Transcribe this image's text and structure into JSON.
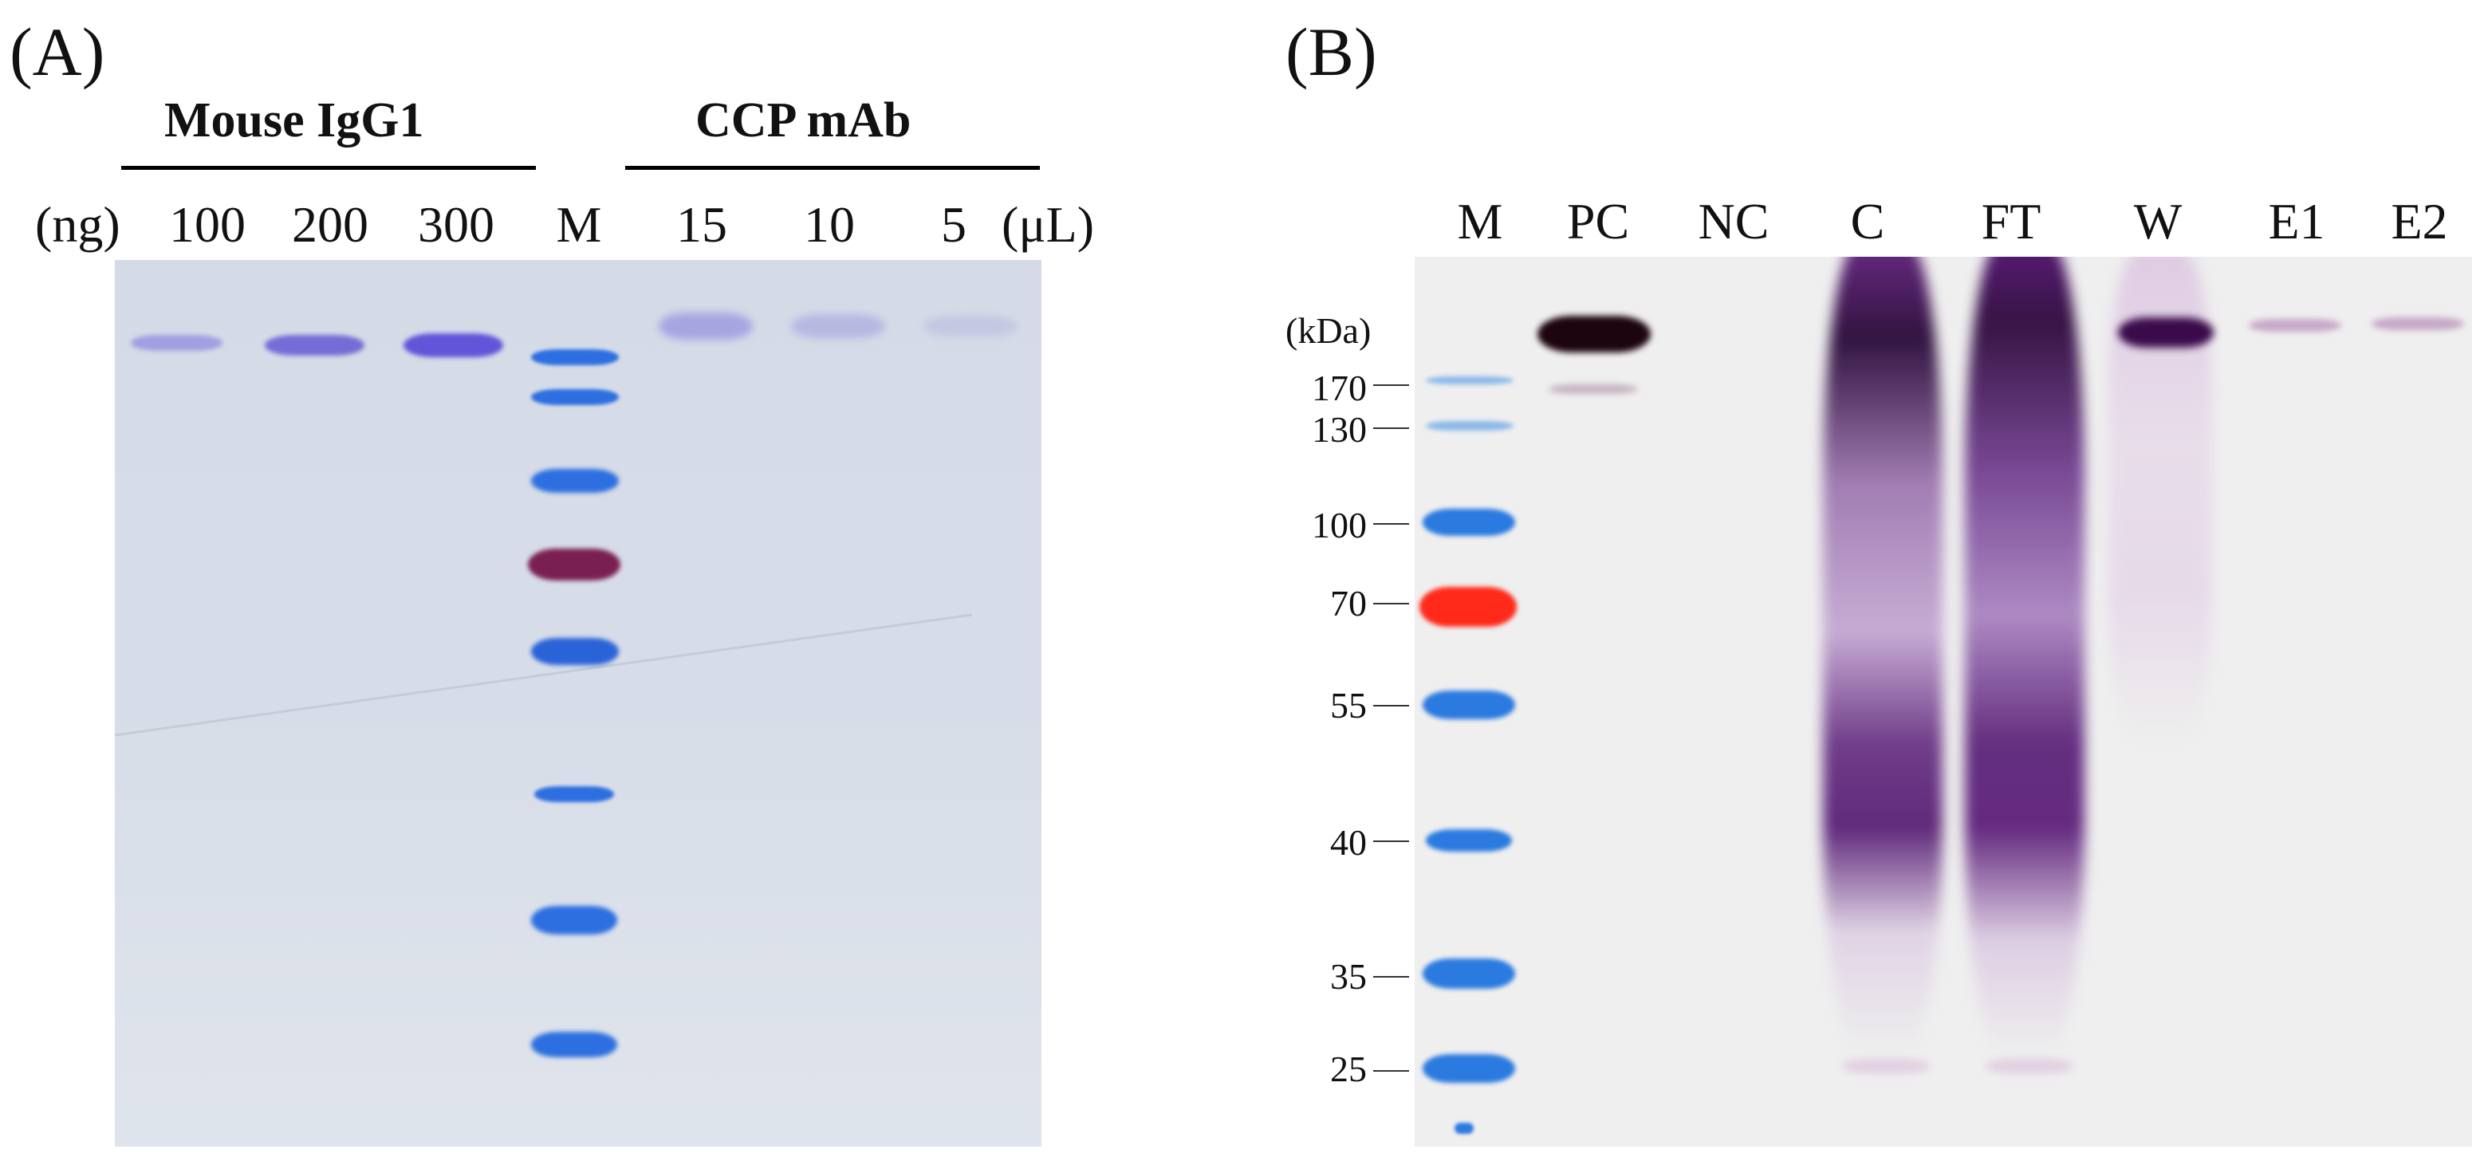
{
  "panel_a": {
    "panel_label": "(A)",
    "group_left_title": "Mouse IgG1",
    "group_right_title": "CCP mAb",
    "unit_left": "(ng)",
    "unit_right": "(μL)",
    "lanes": [
      "100",
      "200",
      "300",
      "M",
      "15",
      "10",
      "5"
    ],
    "colors": {
      "marker_blue": "#2f6fe0",
      "marker_purple": "#7a1f52",
      "band_violet": "#6a5ad8",
      "gel": "#d7dde8"
    }
  },
  "panel_b": {
    "panel_label": "(B)",
    "lanes": [
      "M",
      "PC",
      "NC",
      "C",
      "FT",
      "W",
      "E1",
      "E2"
    ],
    "mw_unit": "(kDa)",
    "mw_markers": [
      "170",
      "130",
      "100",
      "70",
      "55",
      "40",
      "35",
      "25"
    ],
    "colors": {
      "marker_blue": "#2a7ae0",
      "marker_red": "#ff2a1a",
      "band_purple": "#3a0a4a",
      "gel": "#efefef"
    }
  }
}
